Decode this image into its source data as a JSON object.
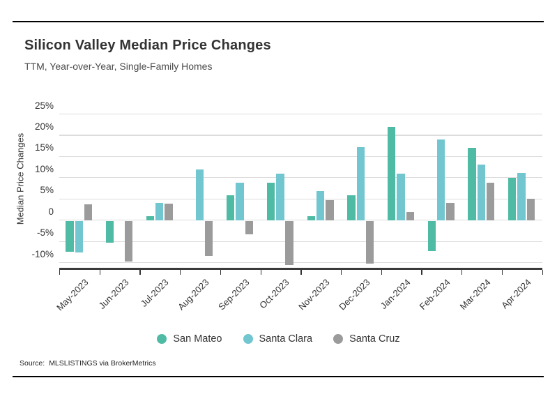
{
  "header": {
    "title": "Silicon Valley Median Price Changes",
    "subtitle": "TTM, Year-over-Year, Single-Family Homes"
  },
  "chart_data": {
    "type": "bar",
    "title": "Silicon Valley Median Price Changes",
    "subtitle": "TTM, Year-over-Year, Single-Family Homes",
    "xlabel": "",
    "ylabel": "Median Price Changes",
    "categories": [
      "May-2023",
      "Jun-2023",
      "Jul-2023",
      "Aug-2023",
      "Sep-2023",
      "Oct-2023",
      "Nov-2023",
      "Dec-2023",
      "Jan-2024",
      "Feb-2024",
      "Mar-2024",
      "Apr-2024"
    ],
    "series": [
      {
        "name": "San Mateo",
        "color": "#50BBA4",
        "values": [
          -7.5,
          -5.3,
          1.0,
          0,
          5.8,
          8.9,
          1.0,
          5.8,
          22.0,
          -7.3,
          17.1,
          10.0
        ]
      },
      {
        "name": "Santa Clara",
        "color": "#72C6CF",
        "values": [
          -7.7,
          0,
          4.0,
          12.0,
          8.9,
          10.9,
          6.9,
          17.2,
          10.9,
          19.0,
          13.1,
          11.2
        ]
      },
      {
        "name": "Santa Cruz",
        "color": "#9B9B9B",
        "values": [
          3.8,
          -9.7,
          3.9,
          -8.4,
          -3.3,
          -10.5,
          4.8,
          -10.3,
          1.9,
          4.0,
          8.9,
          5.0
        ]
      }
    ],
    "yticks": [
      "25%",
      "20%",
      "15%",
      "10%",
      "5%",
      "0",
      "-5%",
      "-10%"
    ],
    "ytick_values": [
      25,
      20,
      15,
      10,
      5,
      0,
      -5,
      -10
    ],
    "ylim": [
      -11.5,
      27
    ],
    "grid": true,
    "legend_position": "bottom",
    "units": "percent"
  },
  "legend": {
    "items": [
      {
        "label": "San Mateo",
        "color": "#50BBA4"
      },
      {
        "label": "Santa Clara",
        "color": "#72C6CF"
      },
      {
        "label": "Santa Cruz",
        "color": "#9B9B9B"
      }
    ]
  },
  "source": {
    "prefix": "Source:",
    "text": "MLSLISTINGS via BrokerMetrics"
  }
}
